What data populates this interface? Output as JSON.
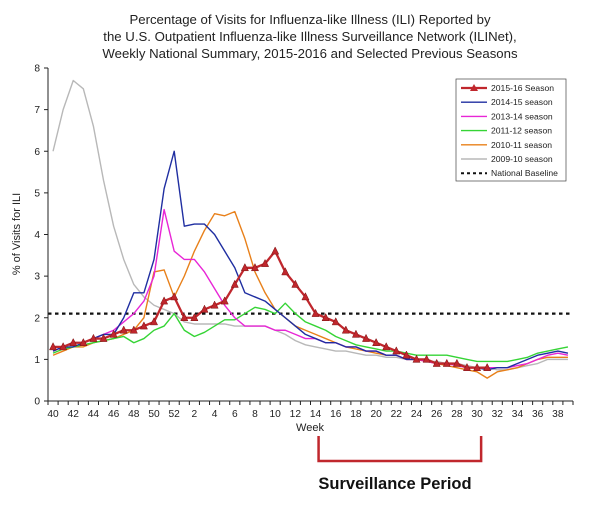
{
  "chart_data": {
    "type": "line",
    "title_lines": [
      "Percentage of Visits for Influenza-like Illness (ILI) Reported by",
      "the U.S. Outpatient Influenza-like Illness Surveillance Network (ILINet),",
      "Weekly National Summary, 2015-2016 and Selected Previous Seasons"
    ],
    "xlabel": "Week",
    "ylabel": "% of Visits for ILI",
    "ylim": [
      0,
      8
    ],
    "y_ticks": [
      0,
      1,
      2,
      3,
      4,
      5,
      6,
      7,
      8
    ],
    "x_ticks": [
      "40",
      "42",
      "44",
      "46",
      "48",
      "50",
      "52",
      "2",
      "4",
      "6",
      "8",
      "10",
      "12",
      "14",
      "16",
      "18",
      "20",
      "22",
      "24",
      "26",
      "28",
      "30",
      "32",
      "34",
      "36",
      "38"
    ],
    "x_weeks": [
      40,
      41,
      42,
      43,
      44,
      45,
      46,
      47,
      48,
      49,
      50,
      51,
      52,
      1,
      2,
      3,
      4,
      5,
      6,
      7,
      8,
      9,
      10,
      11,
      12,
      13,
      14,
      15,
      16,
      17,
      18,
      19,
      20,
      21,
      22,
      23,
      24,
      25,
      26,
      27,
      28,
      29,
      30,
      31,
      32,
      33,
      34,
      35,
      36,
      37,
      38,
      39
    ],
    "grid": false,
    "legend_position": "top-right",
    "series": [
      {
        "name": "2015-16 Season",
        "color": "#c0272d",
        "marker": "triangle",
        "values": [
          1.3,
          1.3,
          1.4,
          1.4,
          1.5,
          1.5,
          1.6,
          1.7,
          1.7,
          1.8,
          1.9,
          2.4,
          2.5,
          2.0,
          2.0,
          2.2,
          2.3,
          2.4,
          2.8,
          3.2,
          3.2,
          3.3,
          3.6,
          3.1,
          2.8,
          2.5,
          2.1,
          2.0,
          1.9,
          1.7,
          1.6,
          1.5,
          1.4,
          1.3,
          1.2,
          1.1,
          1.0,
          1.0,
          0.9,
          0.9,
          0.9,
          0.8,
          0.8,
          0.8
        ]
      },
      {
        "name": "2014-15 season",
        "color": "#1f2ea1",
        "values": [
          1.2,
          1.3,
          1.3,
          1.4,
          1.5,
          1.6,
          1.6,
          2.0,
          2.6,
          2.6,
          3.4,
          5.1,
          6.0,
          4.2,
          4.25,
          4.25,
          4.0,
          3.6,
          3.2,
          2.6,
          2.5,
          2.4,
          2.2,
          2.0,
          1.8,
          1.6,
          1.5,
          1.4,
          1.4,
          1.3,
          1.3,
          1.2,
          1.2,
          1.1,
          1.1,
          1.0,
          1.0,
          1.0,
          0.9,
          0.9,
          0.9,
          0.8,
          0.8,
          0.75,
          0.8,
          0.8,
          0.9,
          1.0,
          1.1,
          1.15,
          1.2,
          1.15
        ]
      },
      {
        "name": "2013-14 season",
        "color": "#e826d6",
        "values": [
          1.2,
          1.3,
          1.4,
          1.4,
          1.5,
          1.6,
          1.7,
          1.9,
          2.1,
          2.4,
          3.0,
          4.6,
          3.6,
          3.4,
          3.4,
          3.1,
          2.7,
          2.3,
          2.0,
          1.8,
          1.8,
          1.8,
          1.7,
          1.7,
          1.6,
          1.5,
          1.5,
          1.4,
          1.4,
          1.3,
          1.3,
          1.2,
          1.2,
          1.1,
          1.1,
          1.0,
          1.0,
          0.95,
          0.9,
          0.9,
          0.85,
          0.8,
          0.8,
          0.8,
          0.8,
          0.8,
          0.85,
          0.9,
          1.0,
          1.1,
          1.15,
          1.1
        ]
      },
      {
        "name": "2011-12 season",
        "color": "#35d435",
        "values": [
          1.15,
          1.25,
          1.3,
          1.35,
          1.4,
          1.45,
          1.5,
          1.55,
          1.4,
          1.5,
          1.7,
          1.8,
          2.1,
          1.7,
          1.55,
          1.65,
          1.8,
          1.95,
          1.95,
          2.1,
          2.25,
          2.2,
          2.1,
          2.35,
          2.1,
          1.9,
          1.8,
          1.7,
          1.55,
          1.45,
          1.35,
          1.3,
          1.25,
          1.2,
          1.2,
          1.15,
          1.1,
          1.1,
          1.1,
          1.1,
          1.05,
          1.0,
          0.95,
          0.95,
          0.95,
          0.95,
          1.0,
          1.05,
          1.15,
          1.2,
          1.25,
          1.3
        ]
      },
      {
        "name": "2010-11 season",
        "color": "#e8801a",
        "values": [
          1.1,
          1.2,
          1.3,
          1.3,
          1.4,
          1.45,
          1.5,
          1.6,
          1.7,
          2.0,
          3.1,
          3.15,
          2.5,
          3.0,
          3.6,
          4.1,
          4.5,
          4.45,
          4.55,
          3.9,
          3.1,
          2.6,
          2.2,
          2.0,
          1.8,
          1.7,
          1.6,
          1.5,
          1.4,
          1.3,
          1.25,
          1.2,
          1.15,
          1.1,
          1.1,
          1.0,
          1.0,
          0.95,
          0.9,
          0.85,
          0.8,
          0.75,
          0.7,
          0.55,
          0.7,
          0.75,
          0.8,
          0.9,
          1.0,
          1.05,
          1.05,
          1.05
        ]
      },
      {
        "name": "2009-10 season",
        "color": "#b8b8b8",
        "values": [
          6.0,
          7.0,
          7.7,
          7.5,
          6.6,
          5.3,
          4.2,
          3.4,
          2.8,
          2.5,
          2.3,
          2.2,
          2.1,
          1.9,
          1.85,
          1.85,
          1.85,
          1.85,
          1.8,
          1.8,
          1.8,
          1.8,
          1.7,
          1.6,
          1.45,
          1.35,
          1.3,
          1.25,
          1.2,
          1.2,
          1.15,
          1.1,
          1.1,
          1.05,
          1.05,
          1.0,
          1.0,
          0.95,
          0.95,
          0.9,
          0.9,
          0.85,
          0.8,
          0.8,
          0.75,
          0.75,
          0.8,
          0.85,
          0.9,
          1.0,
          1.0,
          1.0
        ]
      }
    ],
    "baseline": {
      "name": "National Baseline",
      "value": 2.1,
      "style": "dashed",
      "color": "#111111"
    },
    "annotation": {
      "label": "Surveillance Period",
      "from_week": 14,
      "to_week": 30,
      "color": "#c0272d"
    }
  }
}
